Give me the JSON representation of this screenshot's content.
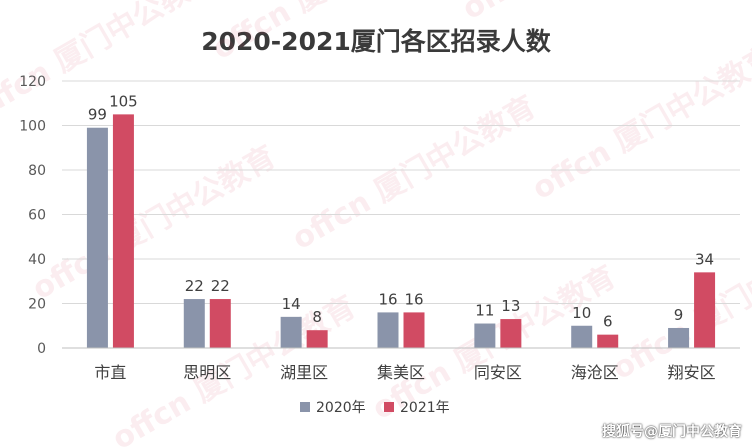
{
  "chart_data": {
    "type": "bar",
    "title": "2020-2021厦门各区招录人数",
    "categories": [
      "市直",
      "思明区",
      "湖里区",
      "集美区",
      "同安区",
      "海沧区",
      "翔安区"
    ],
    "series": [
      {
        "name": "2020年",
        "values": [
          99,
          22,
          14,
          16,
          11,
          10,
          9
        ],
        "color": "#8a94aa"
      },
      {
        "name": "2021年",
        "values": [
          105,
          22,
          8,
          16,
          13,
          6,
          34
        ],
        "color": "#d14b63"
      }
    ],
    "y_ticks": [
      "0",
      "20",
      "40",
      "60",
      "80",
      "100",
      "120"
    ],
    "ylim": [
      0,
      120
    ],
    "grid": true,
    "legend_position": "bottom"
  },
  "watermark": {
    "corner_text": "搜狐号@厦门中公教育",
    "tile_text": "offcn 厦门中公教育"
  }
}
